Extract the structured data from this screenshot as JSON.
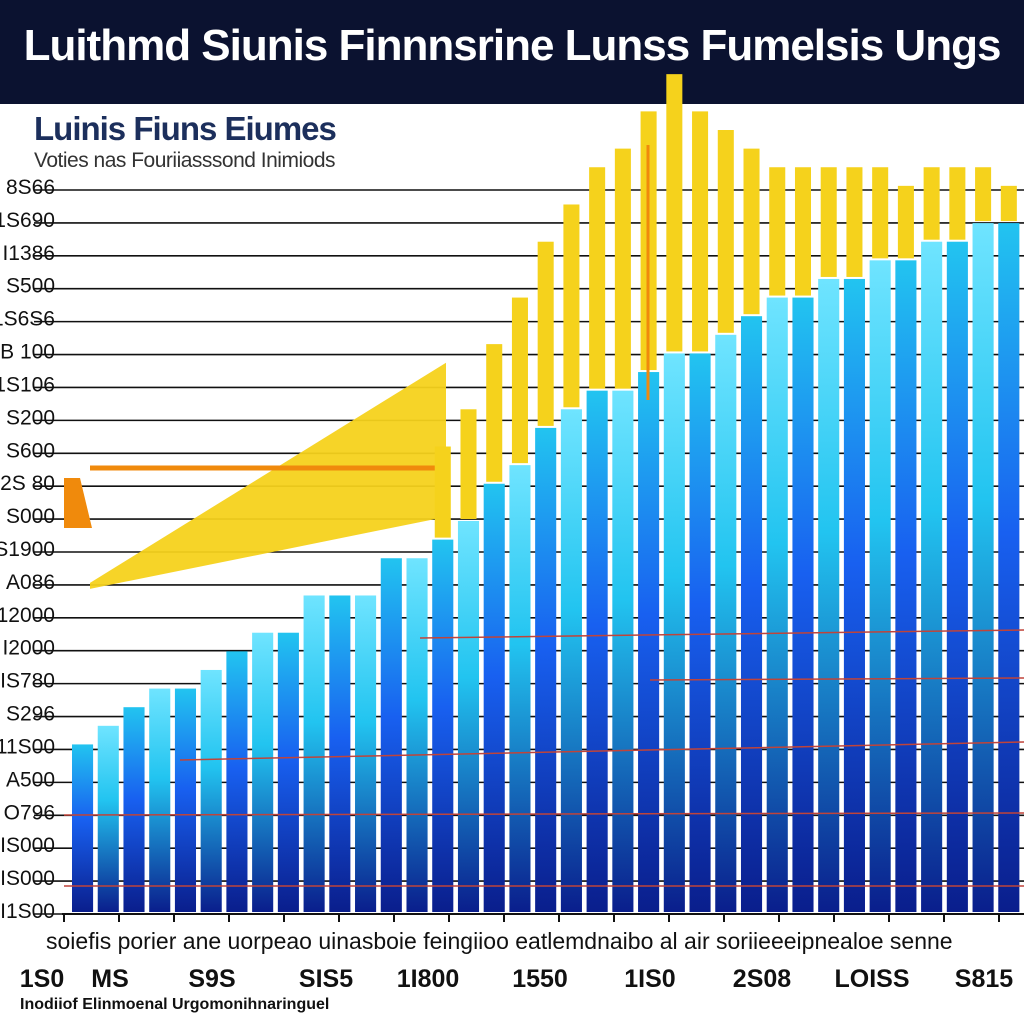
{
  "banner": {
    "title": "Luithmd Siunis Finnnsrine Lunss Fumelsis Ungs"
  },
  "chart_data": {
    "type": "bar",
    "title": "Luinis Fiuns Eiumes",
    "subtitle": "Voties nas Fouriiasssond Inimiods",
    "y_tick_labels": [
      "8S66",
      "1S690",
      "I1386",
      "I S500",
      "1S6S6",
      "B 100",
      "1S106",
      "S200",
      "S600",
      "2S 80",
      "S000",
      "S1900",
      "A086",
      "12000",
      "I2000",
      "IS780",
      "S296",
      "11S00",
      "A500",
      "O796",
      "IS000",
      "IS000",
      "I1S00"
    ],
    "category_labels_text": "soiefis porier ane uorpeao uinasboie feingiioo eatlemdnaibo al air soriieeeipnealoe senne",
    "group_labels": [
      "1S0",
      "MS",
      "S9S",
      "SIS5",
      "1I800",
      "1550",
      "1IS0",
      "2S08",
      "LOISS",
      "S815"
    ],
    "footnote": "Inodiiof Elinmoenal Urgomonihnaringuel",
    "colors": {
      "background": "#ffffff",
      "banner": "#0b1230",
      "blue_dark": "#0a1e8c",
      "blue_mid": "#1860f0",
      "cyan": "#22c4f0",
      "yellow": "#f5d21c",
      "orange": "#f08a0c",
      "red_line": "#c0443a"
    },
    "series": [
      {
        "name": "",
        "color": "#1a6ef0",
        "values": [
          900,
          1000,
          1100,
          1200,
          1200,
          1300,
          1400,
          1500,
          1500,
          1700,
          1700,
          1700,
          1900,
          1900,
          2000,
          2100,
          2300,
          2400,
          2600,
          2700,
          2800,
          2800,
          2900,
          3000,
          3000,
          3100,
          3200,
          3300,
          3300,
          3400,
          3400,
          3500,
          3500,
          3600,
          3600,
          3700,
          3700
        ]
      },
      {
        "name": "",
        "color": "#f5d21c",
        "values": [
          0,
          0,
          0,
          0,
          0,
          0,
          0,
          0,
          0,
          0,
          0,
          0,
          0,
          0,
          500,
          600,
          750,
          900,
          1000,
          1100,
          1200,
          1300,
          1400,
          1500,
          1300,
          1100,
          900,
          700,
          700,
          600,
          600,
          500,
          400,
          400,
          400,
          300,
          200
        ]
      }
    ],
    "area_wedge": {
      "color": "#f5d21c",
      "from_value": 1800,
      "to_value": 2950
    },
    "ylim": [
      0,
      4200
    ],
    "grid": true
  }
}
